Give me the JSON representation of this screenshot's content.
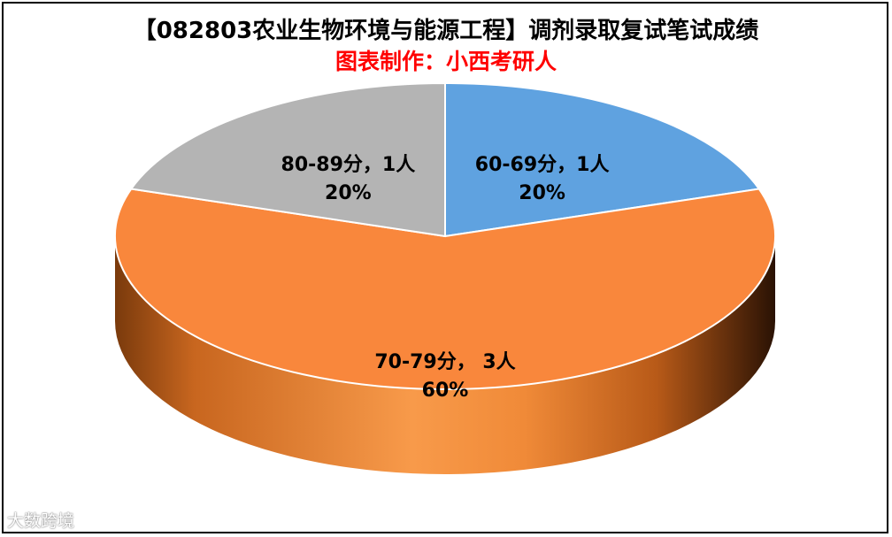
{
  "chart_data": {
    "type": "pie",
    "title": "【082803农业生物环境与能源工程】调剂录取复试笔试成绩",
    "subtitle": "图表制作：小西考研人",
    "categories": [
      "60-69分",
      "70-79分",
      "80-89分"
    ],
    "values": [
      1,
      3,
      1
    ],
    "percentages": [
      "20%",
      "60%",
      "20%"
    ],
    "data_labels": [
      {
        "line1": "60-69分，1人",
        "line2": "20%"
      },
      {
        "line1": "70-79分， 3人",
        "line2": "60%"
      },
      {
        "line1": "80-89分，1人",
        "line2": "20%"
      }
    ],
    "colors": [
      "#5fa2e0",
      "#f9873c",
      "#b4b4b4"
    ],
    "style": "3d"
  },
  "watermark": "大数跨境"
}
